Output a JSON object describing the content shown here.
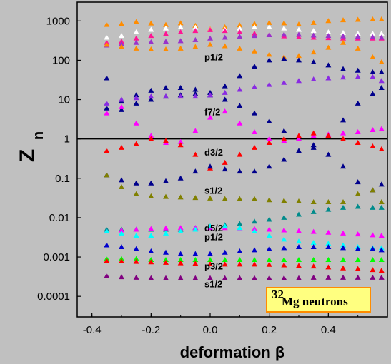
{
  "chart_data": {
    "type": "scatter",
    "xlabel": "deformation β",
    "ylabel_main": "Z",
    "ylabel_sub": "n",
    "xlim": [
      -0.45,
      0.6
    ],
    "ylim": [
      3e-05,
      3000
    ],
    "yscale": "log",
    "x_ticks": [
      -0.4,
      -0.2,
      0.0,
      0.2,
      0.4
    ],
    "x_tick_labels": [
      "-0.4",
      "-0.2",
      "0.0",
      "0.2",
      "0.4"
    ],
    "y_ticks": [
      1000,
      100,
      10,
      1,
      0.1,
      0.01,
      0.001,
      0.0001
    ],
    "y_tick_labels": [
      "1000",
      "100",
      "10",
      "1",
      "0.1",
      "0.01",
      "0.001",
      "0.0001"
    ],
    "reference_line_y": 1,
    "x": [
      -0.35,
      -0.3,
      -0.25,
      -0.2,
      -0.15,
      -0.1,
      -0.05,
      0.0,
      0.05,
      0.1,
      0.15,
      0.2,
      0.25,
      0.3,
      0.35,
      0.4,
      0.45,
      0.5,
      0.55,
      0.58
    ],
    "series": [
      {
        "color": "#ff8c00",
        "values": [
          800,
          850,
          950,
          870,
          800,
          880,
          760,
          620,
          700,
          780,
          850,
          900,
          880,
          820,
          900,
          1000,
          1050,
          1080,
          1100,
          1100
        ]
      },
      {
        "color": "#ffffff",
        "values": [
          380,
          420,
          520,
          600,
          650,
          700,
          680,
          600,
          600,
          650,
          700,
          700,
          650,
          600,
          560,
          520,
          500,
          480,
          480,
          480
        ]
      },
      {
        "color": "#ff1493",
        "values": [
          280,
          300,
          360,
          420,
          470,
          520,
          560,
          590,
          560,
          520,
          480,
          440,
          410,
          390,
          380,
          370,
          360,
          360,
          360,
          360
        ]
      },
      {
        "color": "#9932cc",
        "values": [
          240,
          260,
          280,
          290,
          300,
          310,
          330,
          360,
          380,
          400,
          420,
          440,
          450,
          450,
          430,
          420,
          410,
          400,
          390,
          380
        ]
      },
      {
        "color": "#ff8c00",
        "values": [
          250,
          220,
          200,
          190,
          190,
          200,
          220,
          250,
          230,
          200,
          170,
          140,
          120,
          130,
          160,
          210,
          280,
          200,
          120,
          90
        ]
      },
      {
        "color": "#00008b",
        "values": [
          35,
          5.5,
          8,
          10,
          12,
          13,
          14,
          15,
          22,
          40,
          70,
          100,
          110,
          100,
          90,
          75,
          60,
          55,
          50,
          50
        ]
      },
      {
        "color": "#00008b",
        "values": [
          6,
          9,
          13,
          17,
          20,
          20,
          18,
          13,
          10,
          7,
          4.5,
          2.8,
          1.6,
          1.0,
          0.6,
          1.2,
          3,
          8,
          14,
          20
        ]
      },
      {
        "color": "#8a2be2",
        "values": [
          8,
          10,
          11,
          12,
          12,
          12,
          12,
          13,
          15,
          18,
          21,
          24,
          27,
          30,
          33,
          35,
          37,
          38,
          38,
          30
        ]
      },
      {
        "color": "#ff00ff",
        "values": [
          4.5,
          6.5,
          2.5,
          1.2,
          0.8,
          0.85,
          1.6,
          3.5,
          5,
          2.5,
          1.5,
          1.0,
          0.9,
          1.0,
          1.2,
          1.3,
          1.4,
          1.5,
          1.7,
          1.8
        ]
      },
      {
        "color": "#ff0000",
        "values": [
          0.5,
          0.6,
          0.75,
          1.0,
          0.9,
          0.7,
          0.4,
          0.18,
          0.25,
          0.4,
          0.6,
          0.8,
          1.0,
          1.2,
          1.4,
          1.2,
          1.0,
          0.8,
          0.65,
          0.55
        ]
      },
      {
        "color": "#00008b",
        "values": [
          0.12,
          0.09,
          0.075,
          0.075,
          0.085,
          0.1,
          0.15,
          0.2,
          0.17,
          0.15,
          0.15,
          0.2,
          0.3,
          0.5,
          0.7,
          0.4,
          0.2,
          0.08,
          0.05,
          0.07
        ]
      },
      {
        "color": "#808000",
        "values": [
          0.12,
          0.06,
          0.04,
          0.035,
          0.034,
          0.033,
          0.032,
          0.031,
          0.03,
          0.03,
          0.03,
          0.028,
          0.027,
          0.026,
          0.025,
          0.025,
          0.025,
          0.04,
          0.05,
          0.025
        ]
      },
      {
        "color": "#008b8b",
        "values": [
          0.005,
          0.005,
          0.005,
          0.005,
          0.005,
          0.005,
          0.0055,
          0.006,
          0.0065,
          0.007,
          0.008,
          0.009,
          0.01,
          0.012,
          0.014,
          0.016,
          0.018,
          0.019,
          0.018,
          0.018
        ]
      },
      {
        "color": "#ff00ff",
        "values": [
          0.0045,
          0.0048,
          0.005,
          0.0052,
          0.0054,
          0.0055,
          0.0055,
          0.0055,
          0.0055,
          0.0054,
          0.0052,
          0.005,
          0.0048,
          0.0046,
          0.0044,
          0.0042,
          0.004,
          0.0038,
          0.0036,
          0.0035
        ]
      },
      {
        "color": "#00ffff",
        "values": [
          0.0045,
          0.004,
          0.0035,
          0.0035,
          0.004,
          0.0045,
          0.005,
          0.006,
          0.006,
          0.0055,
          0.0045,
          0.0035,
          0.0028,
          0.0025,
          0.0023,
          0.0022,
          0.002,
          0.0018,
          0.0017,
          0.0017
        ]
      },
      {
        "color": "#0000cd",
        "values": [
          0.002,
          0.0018,
          0.0016,
          0.0014,
          0.0013,
          0.0012,
          0.0012,
          0.0012,
          0.0013,
          0.0014,
          0.0015,
          0.0016,
          0.0017,
          0.0018,
          0.0018,
          0.0018,
          0.0017,
          0.0016,
          0.0016,
          0.0015
        ]
      },
      {
        "color": "#00ff00",
        "values": [
          0.0009,
          0.0009,
          0.0009,
          0.00085,
          0.00085,
          0.00085,
          0.00085,
          0.00085,
          0.00085,
          0.00085,
          0.00085,
          0.00085,
          0.00085,
          0.00085,
          0.00085,
          0.00085,
          0.00085,
          0.00085,
          0.00085,
          0.00085
        ]
      },
      {
        "color": "#ff0000",
        "values": [
          0.0008,
          0.00078,
          0.00076,
          0.00074,
          0.00072,
          0.0007,
          0.00068,
          0.00066,
          0.00065,
          0.00065,
          0.00065,
          0.00064,
          0.00062,
          0.0006,
          0.00058,
          0.00055,
          0.00052,
          0.0005,
          0.00047,
          0.00045
        ]
      },
      {
        "color": "#800080",
        "values": [
          0.00033,
          0.00031,
          0.0003,
          0.00029,
          0.00029,
          0.00029,
          0.00029,
          0.00029,
          0.00029,
          0.00029,
          0.00029,
          0.00029,
          0.00029,
          0.00029,
          0.0003,
          0.0003,
          0.0003,
          0.0003,
          0.0003,
          0.0003
        ]
      }
    ],
    "level_labels": [
      {
        "text": "p1/2",
        "x": 0.0,
        "y": 100
      },
      {
        "text": "f7/2",
        "x": 0.0,
        "y": 4
      },
      {
        "text": "d3/2",
        "x": 0.0,
        "y": 0.38
      },
      {
        "text": "s1/2",
        "x": 0.0,
        "y": 0.04
      },
      {
        "text": "d5/2",
        "x": 0.0,
        "y": 0.0045
      },
      {
        "text": "p1/2",
        "x": 0.0,
        "y": 0.00045
      },
      {
        "text": "p3/2",
        "x": 0.0,
        "y": 0.00042
      },
      {
        "text": "s1/2",
        "x": 0.0,
        "y": 0.00016
      }
    ],
    "legend": {
      "superscript": "32",
      "text": "Mg neutrons",
      "box_fill": "#ffff80",
      "box_border": "#ff8c00",
      "position": "bottom-right"
    }
  }
}
